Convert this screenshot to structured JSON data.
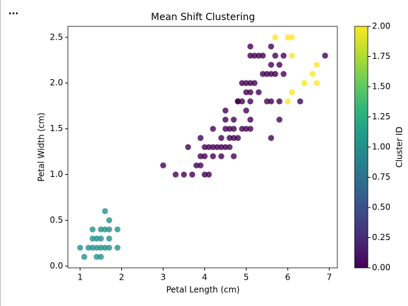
{
  "chart_data": {
    "type": "scatter",
    "title": "Mean Shift Clustering",
    "x_label": "Petal Length (cm)",
    "y_label": "Petal Width (cm)",
    "colorbar_label": "Cluster ID",
    "colormap": "viridis",
    "clim": [
      0,
      2
    ],
    "x": [
      1.0,
      1.1,
      1.2,
      1.3,
      1.3,
      1.3,
      1.4,
      1.4,
      1.4,
      1.5,
      1.5,
      1.5,
      1.5,
      1.6,
      1.6,
      1.6,
      1.7,
      1.7,
      1.7,
      1.7,
      1.9,
      1.9,
      3.0,
      3.3,
      3.5,
      3.6,
      3.7,
      3.8,
      3.9,
      3.9,
      3.9,
      4.0,
      4.0,
      4.0,
      4.1,
      4.1,
      4.2,
      4.2,
      4.2,
      4.3,
      4.4,
      4.4,
      4.4,
      4.5,
      4.5,
      4.5,
      4.6,
      4.6,
      4.6,
      4.7,
      4.7,
      4.7,
      4.7,
      4.8,
      4.8,
      4.9,
      5.0,
      5.1,
      4.5,
      4.8,
      4.9,
      4.9,
      5.0,
      5.0,
      5.0,
      5.1,
      5.1,
      5.1,
      5.1,
      5.1,
      5.1,
      5.2,
      5.2,
      5.3,
      5.3,
      5.4,
      5.4,
      5.5,
      5.5,
      5.6,
      5.6,
      5.6,
      5.6,
      5.6,
      5.7,
      5.7,
      5.8,
      5.8,
      5.8,
      5.9,
      5.9,
      6.3,
      6.9,
      5.7,
      6.0,
      6.0,
      6.1,
      6.1,
      6.1,
      6.4,
      6.6,
      6.7,
      6.7
    ],
    "values": [
      0.2,
      0.1,
      0.2,
      0.2,
      0.3,
      0.4,
      0.1,
      0.2,
      0.3,
      0.1,
      0.2,
      0.3,
      0.4,
      0.2,
      0.4,
      0.6,
      0.2,
      0.3,
      0.4,
      0.5,
      0.2,
      0.4,
      1.1,
      1.0,
      1.0,
      1.3,
      1.0,
      1.1,
      1.1,
      1.2,
      1.4,
      1.0,
      1.2,
      1.3,
      1.0,
      1.3,
      1.2,
      1.3,
      1.5,
      1.3,
      1.2,
      1.3,
      1.4,
      1.3,
      1.5,
      1.6,
      1.3,
      1.4,
      1.5,
      1.2,
      1.4,
      1.5,
      1.6,
      1.4,
      1.8,
      1.5,
      1.7,
      1.6,
      1.7,
      1.8,
      1.8,
      2.0,
      1.5,
      1.9,
      2.0,
      1.5,
      1.8,
      1.9,
      2.0,
      2.3,
      2.4,
      2.0,
      2.3,
      1.9,
      2.3,
      2.1,
      2.3,
      1.8,
      2.1,
      1.4,
      1.8,
      2.1,
      2.2,
      2.4,
      2.1,
      2.3,
      1.6,
      1.8,
      2.2,
      2.1,
      2.3,
      1.8,
      2.3,
      2.5,
      1.8,
      2.5,
      1.9,
      2.3,
      2.5,
      2.0,
      2.1,
      2.0,
      2.2
    ],
    "cluster": [
      1,
      1,
      1,
      1,
      1,
      1,
      1,
      1,
      1,
      1,
      1,
      1,
      1,
      1,
      1,
      1,
      1,
      1,
      1,
      1,
      1,
      1,
      0,
      0,
      0,
      0,
      0,
      0,
      0,
      0,
      0,
      0,
      0,
      0,
      0,
      0,
      0,
      0,
      0,
      0,
      0,
      0,
      0,
      0,
      0,
      0,
      0,
      0,
      0,
      0,
      0,
      0,
      0,
      0,
      0,
      0,
      0,
      0,
      0,
      0,
      0,
      0,
      0,
      0,
      0,
      0,
      0,
      0,
      0,
      0,
      0,
      0,
      0,
      0,
      0,
      0,
      0,
      0,
      0,
      0,
      0,
      0,
      0,
      0,
      0,
      0,
      0,
      0,
      0,
      0,
      0,
      0,
      0,
      2,
      2,
      2,
      2,
      2,
      2,
      2,
      2,
      2,
      2
    ],
    "xlim": [
      0.705,
      7.195
    ],
    "xticks": [
      1,
      2,
      3,
      4,
      5,
      6,
      7
    ],
    "ylim": [
      -0.02,
      2.62
    ],
    "yticks": [
      {
        "value": 0,
        "label": "0.0"
      },
      0.5,
      {
        "value": 1,
        "label": "1.0"
      },
      1.5,
      {
        "value": 2,
        "label": "2.0"
      },
      2.5
    ],
    "cticks": [
      {
        "value": 0,
        "label": "0.00"
      },
      0.25,
      {
        "value": 0.5,
        "label": "0.50"
      },
      0.75,
      {
        "value": 1,
        "label": "1.00"
      },
      1.25,
      {
        "value": 1.5,
        "label": "1.50"
      },
      1.75,
      {
        "value": 2,
        "label": "2.00"
      }
    ]
  }
}
